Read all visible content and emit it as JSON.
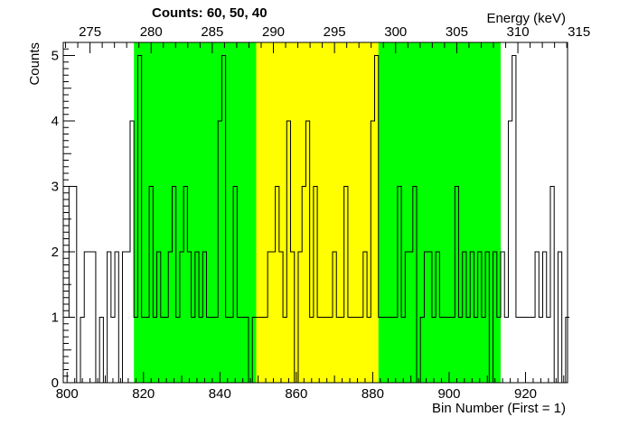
{
  "chart_data": {
    "type": "histogram",
    "counts_label": "Counts:   60,   50,   40",
    "xlabel": "Bin Number (First = 1)",
    "ylabel": "Counts",
    "top_axis_label": "Energy (keV)",
    "x_range": [
      799,
      931
    ],
    "y_range": [
      0,
      5.2
    ],
    "x_ticks": [
      800,
      820,
      840,
      860,
      880,
      900,
      920
    ],
    "y_ticks": [
      0,
      1,
      2,
      3,
      4,
      5
    ],
    "top_ticks": [
      275,
      280,
      285,
      290,
      295,
      300,
      305,
      310,
      315
    ],
    "energy_calibration": {
      "bin_at_275": 806.0,
      "bins_per_keV": 3.2
    },
    "regions": [
      {
        "from": 817.5,
        "to": 849.5,
        "color": "#00ff00"
      },
      {
        "from": 849.5,
        "to": 881.5,
        "color": "#ffff00"
      },
      {
        "from": 881.5,
        "to": 913.5,
        "color": "#00ff00"
      }
    ],
    "bin_start": 799.5,
    "bin_values": [
      1,
      3,
      3,
      0,
      1,
      2,
      2,
      2,
      0,
      1,
      0,
      2,
      1,
      2,
      0,
      2,
      2,
      4,
      1,
      5,
      1,
      1,
      3,
      1,
      2,
      1,
      1,
      2,
      3,
      1,
      2,
      3,
      2,
      1,
      2,
      1,
      2,
      1,
      1,
      1,
      4,
      5,
      1,
      1,
      3,
      1,
      1,
      1,
      0,
      1,
      1,
      1,
      1,
      2,
      2,
      3,
      2,
      1,
      4,
      2,
      0,
      2,
      3,
      4,
      1,
      3,
      1,
      1,
      1,
      1,
      2,
      1,
      1,
      3,
      1,
      1,
      1,
      1,
      2,
      1,
      4,
      5,
      1,
      1,
      1,
      1,
      1,
      3,
      1,
      2,
      2,
      3,
      0,
      1,
      2,
      2,
      1,
      2,
      1,
      1,
      1,
      1,
      3,
      1,
      2,
      1,
      2,
      1,
      2,
      1,
      2,
      0,
      2,
      1,
      2,
      1,
      4,
      5,
      1,
      1,
      1,
      1,
      1,
      2,
      1,
      2,
      1,
      3,
      0,
      2,
      0,
      1
    ],
    "line_color": "#000000"
  }
}
